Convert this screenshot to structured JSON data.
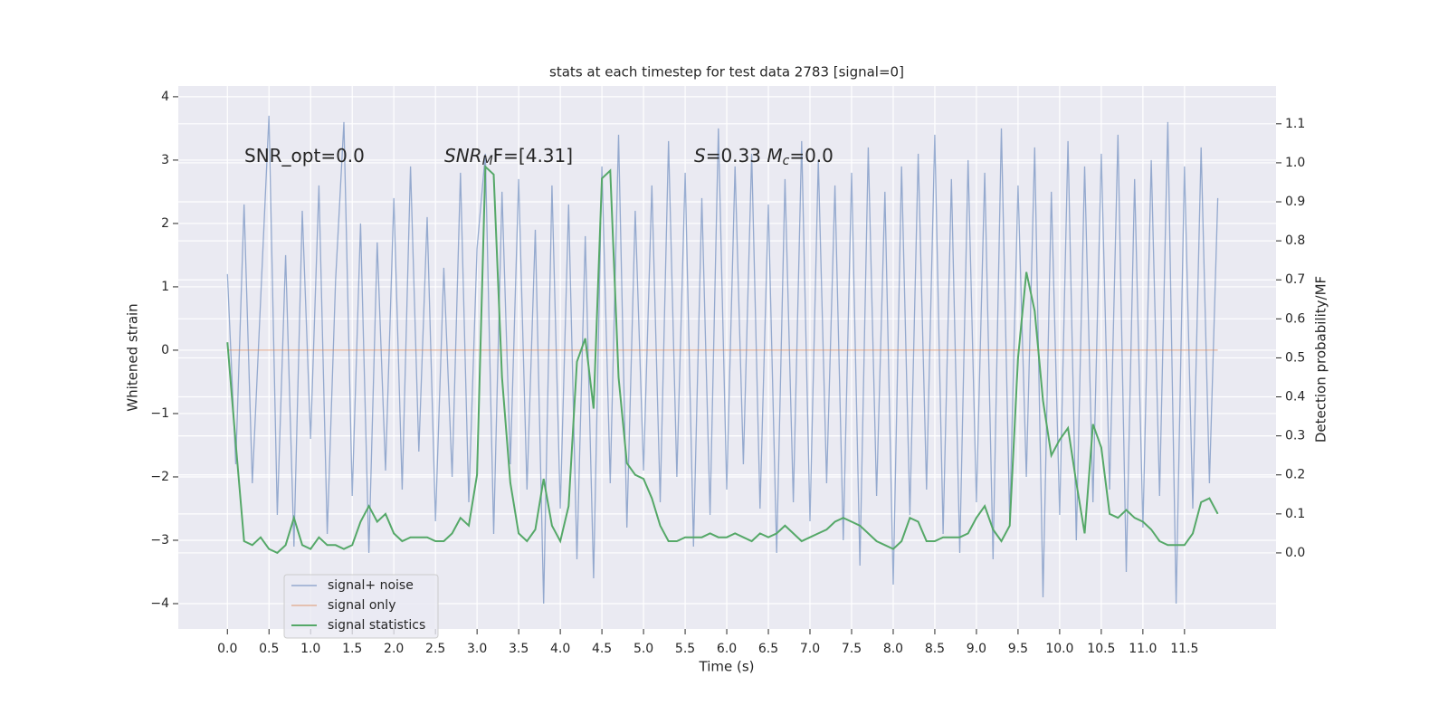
{
  "chart_data": {
    "type": "line",
    "title": "stats at each timestep for test data 2783 [signal=0]",
    "xlabel": "Time (s)",
    "ylabel": "Whitened strain",
    "y2label": "Detection probability/MF",
    "annotations": [
      [
        "SNR_opt=0.0"
      ],
      [
        "SNR",
        "M",
        "F=[4.31]"
      ],
      [
        "S",
        "=0.33   ",
        "M",
        "c",
        "=0.0"
      ]
    ],
    "grid": true,
    "legend": "lower left",
    "x": [
      0,
      0.1,
      0.2,
      0.3,
      0.4,
      0.5,
      0.6,
      0.7,
      0.8,
      0.9,
      1,
      1.1,
      1.2,
      1.3,
      1.4,
      1.5,
      1.6,
      1.7,
      1.8,
      1.9,
      2,
      2.1,
      2.2,
      2.3,
      2.4,
      2.5,
      2.6,
      2.7,
      2.8,
      2.9,
      3,
      3.1,
      3.2,
      3.3,
      3.4,
      3.5,
      3.6,
      3.7,
      3.8,
      3.9,
      4,
      4.1,
      4.2,
      4.3,
      4.4,
      4.5,
      4.6,
      4.7,
      4.8,
      4.9,
      5,
      5.1,
      5.2,
      5.3,
      5.4,
      5.5,
      5.6,
      5.7,
      5.8,
      5.9,
      6,
      6.1,
      6.2,
      6.3,
      6.4,
      6.5,
      6.6,
      6.7,
      6.8,
      6.9,
      7,
      7.1,
      7.2,
      7.3,
      7.4,
      7.5,
      7.6,
      7.7,
      7.8,
      7.9,
      8,
      8.1,
      8.2,
      8.3,
      8.4,
      8.5,
      8.6,
      8.7,
      8.8,
      8.9,
      9,
      9.1,
      9.2,
      9.3,
      9.4,
      9.5,
      9.6,
      9.7,
      9.8,
      9.9,
      10,
      10.1,
      10.2,
      10.3,
      10.4,
      10.5,
      10.6,
      10.7,
      10.8,
      10.9,
      11,
      11.1,
      11.2,
      11.3,
      11.4,
      11.5,
      11.6,
      11.7,
      11.8,
      11.9
    ],
    "series": [
      {
        "name": "signal+ noise",
        "color": "#4c72b0",
        "values": [
          1.2,
          -1.8,
          2.3,
          -2.1,
          0.8,
          3.7,
          -2.6,
          1.5,
          -3.1,
          2.2,
          -1.4,
          2.6,
          -2.9,
          1.1,
          3.6,
          -2.3,
          2.0,
          -3.2,
          1.7,
          -1.9,
          2.4,
          -2.2,
          2.9,
          -1.6,
          2.1,
          -2.7,
          1.3,
          -2.0,
          2.8,
          -2.4,
          1.6,
          3.1,
          -2.9,
          2.5,
          -1.8,
          2.7,
          -2.2,
          1.9,
          -4.0,
          2.6,
          -2.5,
          2.3,
          -3.3,
          1.8,
          -3.6,
          2.9,
          -2.1,
          3.4,
          -2.8,
          2.2,
          -1.9,
          2.6,
          -2.4,
          3.3,
          -2.0,
          2.8,
          -3.1,
          2.4,
          -2.6,
          3.5,
          -2.2,
          2.9,
          -1.8,
          3.1,
          -2.5,
          2.3,
          -3.2,
          2.7,
          -2.4,
          3.3,
          -2.7,
          3.0,
          -2.1,
          2.6,
          -3.0,
          2.8,
          -3.4,
          3.2,
          -2.3,
          2.5,
          -3.7,
          2.9,
          -2.6,
          3.1,
          -2.2,
          3.4,
          -2.9,
          2.7,
          -3.2,
          3.0,
          -2.4,
          2.8,
          -3.3,
          3.5,
          -2.7,
          2.6,
          -2.0,
          3.2,
          -3.9,
          2.5,
          -2.6,
          3.3,
          -3.0,
          2.9,
          -2.4,
          3.1,
          -2.2,
          3.4,
          -3.5,
          2.7,
          -2.8,
          3.0,
          -2.3,
          3.6,
          -4.0,
          2.9,
          -2.5,
          3.2,
          -2.1,
          2.4
        ]
      },
      {
        "name": "signal only",
        "color": "#dd8452",
        "values": [
          0,
          0,
          0,
          0,
          0,
          0,
          0,
          0,
          0,
          0,
          0,
          0,
          0,
          0,
          0,
          0,
          0,
          0,
          0,
          0,
          0,
          0,
          0,
          0,
          0,
          0,
          0,
          0,
          0,
          0,
          0,
          0,
          0,
          0,
          0,
          0,
          0,
          0,
          0,
          0,
          0,
          0,
          0,
          0,
          0,
          0,
          0,
          0,
          0,
          0,
          0,
          0,
          0,
          0,
          0,
          0,
          0,
          0,
          0,
          0,
          0,
          0,
          0,
          0,
          0,
          0,
          0,
          0,
          0,
          0,
          0,
          0,
          0,
          0,
          0,
          0,
          0,
          0,
          0,
          0,
          0,
          0,
          0,
          0,
          0,
          0,
          0,
          0,
          0,
          0,
          0,
          0,
          0,
          0,
          0,
          0,
          0,
          0,
          0,
          0,
          0,
          0,
          0,
          0,
          0,
          0,
          0,
          0,
          0,
          0,
          0,
          0,
          0,
          0,
          0,
          0,
          0,
          0,
          0,
          0
        ]
      },
      {
        "name": "signal statistics",
        "color": "#55a868",
        "axis": "y2",
        "values": [
          0.54,
          0.28,
          0.03,
          0.02,
          0.04,
          0.01,
          0.0,
          0.02,
          0.09,
          0.02,
          0.01,
          0.04,
          0.02,
          0.02,
          0.01,
          0.02,
          0.08,
          0.12,
          0.08,
          0.1,
          0.05,
          0.03,
          0.04,
          0.04,
          0.04,
          0.03,
          0.03,
          0.05,
          0.09,
          0.07,
          0.2,
          0.99,
          0.97,
          0.45,
          0.18,
          0.05,
          0.03,
          0.06,
          0.19,
          0.07,
          0.03,
          0.12,
          0.49,
          0.55,
          0.37,
          0.96,
          0.98,
          0.45,
          0.23,
          0.2,
          0.19,
          0.14,
          0.07,
          0.03,
          0.03,
          0.04,
          0.04,
          0.04,
          0.05,
          0.04,
          0.04,
          0.05,
          0.04,
          0.03,
          0.05,
          0.04,
          0.05,
          0.07,
          0.05,
          0.03,
          0.04,
          0.05,
          0.06,
          0.08,
          0.09,
          0.08,
          0.07,
          0.05,
          0.03,
          0.02,
          0.01,
          0.03,
          0.09,
          0.08,
          0.03,
          0.03,
          0.04,
          0.04,
          0.04,
          0.05,
          0.09,
          0.12,
          0.06,
          0.03,
          0.07,
          0.5,
          0.72,
          0.62,
          0.39,
          0.25,
          0.29,
          0.32,
          0.18,
          0.05,
          0.33,
          0.27,
          0.1,
          0.09,
          0.11,
          0.09,
          0.08,
          0.06,
          0.03,
          0.02,
          0.02,
          0.02,
          0.05,
          0.13,
          0.14,
          0.1
        ]
      }
    ],
    "xlim": [
      -0.59,
      12.6
    ],
    "ylim": [
      -4.4,
      4.17
    ],
    "y2lim": [
      -0.195,
      1.197
    ],
    "xticks": [
      {
        "value": 0,
        "label": "0.0"
      },
      0.5,
      {
        "value": 1,
        "label": "1.0"
      },
      1.5,
      {
        "value": 2,
        "label": "2.0"
      },
      2.5,
      {
        "value": 3,
        "label": "3.0"
      },
      3.5,
      {
        "value": 4,
        "label": "4.0"
      },
      4.5,
      {
        "value": 5,
        "label": "5.0"
      },
      5.5,
      {
        "value": 6,
        "label": "6.0"
      },
      6.5,
      {
        "value": 7,
        "label": "7.0"
      },
      7.5,
      {
        "value": 8,
        "label": "8.0"
      },
      8.5,
      {
        "value": 9,
        "label": "9.0"
      },
      9.5,
      {
        "value": 10,
        "label": "10.0"
      },
      10.5,
      {
        "value": 11,
        "label": "11.0"
      },
      11.5
    ],
    "yticks": [
      {
        "value": -4,
        "label": "−4"
      },
      {
        "value": -3,
        "label": "−3"
      },
      {
        "value": -2,
        "label": "−2"
      },
      {
        "value": -1,
        "label": "−1"
      },
      0,
      1,
      2,
      3,
      4
    ],
    "y2ticks": [
      {
        "value": 0,
        "label": "0.0"
      },
      0.1,
      0.2,
      0.3,
      0.4,
      0.5,
      0.6,
      0.7,
      0.8,
      0.9,
      {
        "value": 1,
        "label": "1.0"
      },
      1.1
    ]
  }
}
